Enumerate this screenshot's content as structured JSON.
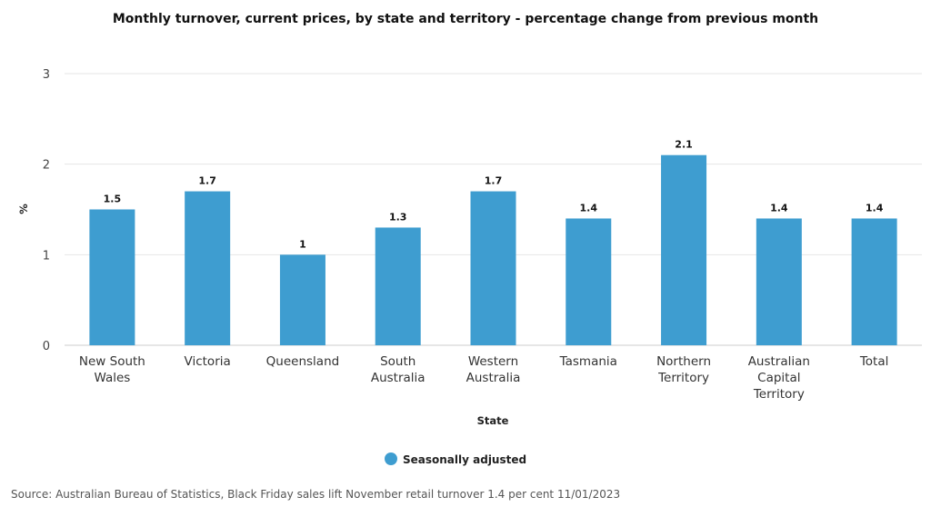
{
  "chart_data": {
    "type": "bar",
    "title": "Monthly turnover, current prices, by state and territory - percentage change from previous month",
    "xlabel": "State",
    "ylabel": "%",
    "ylim": [
      0,
      3
    ],
    "yticks": [
      "0",
      "1",
      "2",
      "3"
    ],
    "grid": true,
    "legend_position": "bottom",
    "categories": [
      [
        "New South",
        "Wales"
      ],
      [
        "Victoria"
      ],
      [
        "Queensland"
      ],
      [
        "South",
        "Australia"
      ],
      [
        "Western",
        "Australia"
      ],
      [
        "Tasmania"
      ],
      [
        "Northern",
        "Territory"
      ],
      [
        "Australian",
        "Capital",
        "Territory"
      ],
      [
        "Total"
      ]
    ],
    "series": [
      {
        "name": "Seasonally adjusted",
        "color": "#3e9dd0",
        "values": [
          1.5,
          1.7,
          1.0,
          1.3,
          1.7,
          1.4,
          2.1,
          1.4,
          1.4
        ],
        "labels": [
          "1.5",
          "1.7",
          "1",
          "1.3",
          "1.7",
          "1.4",
          "2.1",
          "1.4",
          "1.4"
        ]
      }
    ]
  },
  "source": "Source: Australian Bureau of Statistics, Black Friday sales lift November retail turnover 1.4 per cent 11/01/2023"
}
